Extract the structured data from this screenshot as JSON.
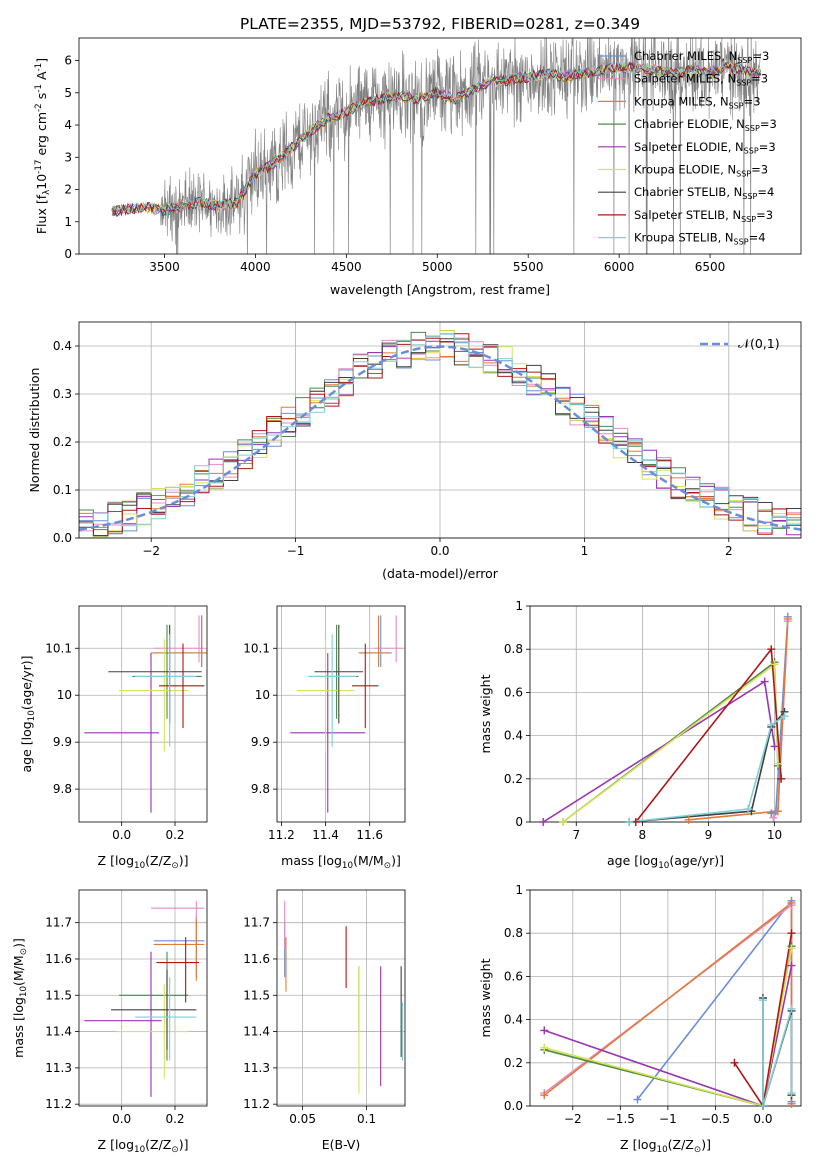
{
  "figure": {
    "title": "PLATE=2355, MJD=53792, FIBERID=0281, z=0.349"
  },
  "colors": {
    "chabrier_miles": "#6a8fd6",
    "salpeter_miles": "#e58cc4",
    "kroupa_miles": "#e07b39",
    "chabrier_elodie": "#4b8a4b",
    "salpeter_elodie": "#9a35b0",
    "kroupa_elodie": "#d6e35a",
    "chabrier_stelib": "#404040",
    "salpeter_stelib": "#b01515",
    "kroupa_stelib": "#7fd0d8",
    "data": "#808080",
    "normal": "#6a8fd6"
  },
  "chart_data": [
    {
      "id": "spectrum",
      "type": "line",
      "xlabel": "wavelength [Angstrom, rest frame]",
      "ylabel": "Flux [f$_\\lambda$10$^{-17}$ erg cm$^{-2}$ s$^{-1}$ A$^{-1}$]",
      "xlim": [
        3030,
        7000
      ],
      "ylim": [
        0,
        6.7
      ],
      "xticks": [
        3500,
        4000,
        4500,
        5000,
        5500,
        6000,
        6500
      ],
      "yticks": [
        0,
        1,
        2,
        3,
        4,
        5,
        6
      ],
      "grid": false,
      "legend_position": "top-right",
      "continuum_x": [
        3200,
        3300,
        3400,
        3500,
        3600,
        3700,
        3800,
        3900,
        4000,
        4100,
        4200,
        4300,
        4400,
        4500,
        4600,
        4700,
        4800,
        4900,
        5000,
        5100,
        5200,
        5300,
        5400,
        5500,
        5600,
        5700,
        5800,
        5900,
        6000,
        6100,
        6200,
        6300,
        6400,
        6500,
        6600,
        6700,
        6800
      ],
      "continuum_y": [
        1.3,
        1.4,
        1.45,
        1.35,
        1.5,
        1.6,
        1.5,
        1.6,
        2.5,
        2.8,
        3.3,
        3.8,
        4.2,
        4.4,
        4.7,
        4.8,
        4.9,
        4.8,
        5.0,
        4.8,
        5.1,
        5.4,
        5.4,
        5.5,
        5.6,
        5.5,
        5.6,
        5.7,
        5.8,
        5.8,
        5.7,
        5.6,
        5.7,
        5.6,
        5.8,
        5.7,
        5.6
      ],
      "series": [
        {
          "name": "Chabrier MILES, N$_{SSP}$=3",
          "color_key": "chabrier_miles"
        },
        {
          "name": "Salpeter MILES, N$_{SSP}$=3",
          "color_key": "salpeter_miles"
        },
        {
          "name": "Kroupa MILES, N$_{SSP}$=3",
          "color_key": "kroupa_miles"
        },
        {
          "name": "Chabrier ELODIE, N$_{SSP}$=3",
          "color_key": "chabrier_elodie"
        },
        {
          "name": "Salpeter ELODIE, N$_{SSP}$=3",
          "color_key": "salpeter_elodie"
        },
        {
          "name": "Kroupa ELODIE, N$_{SSP}$=3",
          "color_key": "kroupa_elodie"
        },
        {
          "name": "Chabrier STELIB, N$_{SSP}$=4",
          "color_key": "chabrier_stelib"
        },
        {
          "name": "Salpeter STELIB, N$_{SSP}$=3",
          "color_key": "salpeter_stelib"
        },
        {
          "name": "Kroupa STELIB, N$_{SSP}$=4",
          "color_key": "kroupa_stelib"
        }
      ]
    },
    {
      "id": "residuals",
      "type": "line",
      "xlabel": "(data-model)/error",
      "ylabel": "Normed distribution",
      "xlim": [
        -2.5,
        2.5
      ],
      "ylim": [
        0,
        0.45
      ],
      "xticks": [
        -2,
        -1,
        0,
        1,
        2
      ],
      "yticks": [
        0.0,
        0.1,
        0.2,
        0.3,
        0.4
      ],
      "grid": true,
      "legend_position": "top-right",
      "legend_label": "$\\mathcal{N}(0,1)$",
      "hist_bins": [
        -2.5,
        2.5,
        50
      ]
    },
    {
      "id": "age_vs_Z",
      "type": "scatter",
      "xlabel": "Z [log$_{10}$(Z/Z$_\\odot$)]",
      "ylabel": "age  [log$_{10}$(age/yr)]",
      "xlim": [
        -0.16,
        0.32
      ],
      "ylim": [
        9.73,
        10.19
      ],
      "xticks": [
        0.0,
        0.2
      ],
      "yticks": [
        9.8,
        9.9,
        10.0,
        10.1
      ],
      "grid": true,
      "points": [
        {
          "k": "chabrier_miles",
          "x": 0.3,
          "xe": [
            0.12,
            0.32
          ],
          "y": 10.09,
          "ye": [
            10.06,
            10.17
          ]
        },
        {
          "k": "salpeter_miles",
          "x": 0.29,
          "xe": [
            0.12,
            0.31
          ],
          "y": 10.1,
          "ye": [
            10.07,
            10.17
          ]
        },
        {
          "k": "kroupa_miles",
          "x": 0.3,
          "xe": [
            0.11,
            0.32
          ],
          "y": 10.09,
          "ye": [
            10.06,
            10.17
          ]
        },
        {
          "k": "chabrier_elodie",
          "x": 0.17,
          "xe": [
            0.04,
            0.3
          ],
          "y": 10.04,
          "ye": [
            9.95,
            10.15
          ]
        },
        {
          "k": "salpeter_elodie",
          "x": 0.11,
          "xe": [
            -0.14,
            0.14
          ],
          "y": 9.92,
          "ye": [
            9.75,
            10.09
          ]
        },
        {
          "k": "kroupa_elodie",
          "x": 0.16,
          "xe": [
            -0.01,
            0.25
          ],
          "y": 10.01,
          "ye": [
            9.88,
            10.12
          ]
        },
        {
          "k": "chabrier_stelib",
          "x": 0.18,
          "xe": [
            -0.05,
            0.3
          ],
          "y": 10.05,
          "ye": [
            9.94,
            10.15
          ]
        },
        {
          "k": "salpeter_stelib",
          "x": 0.23,
          "xe": [
            0.14,
            0.31
          ],
          "y": 10.02,
          "ye": [
            9.93,
            10.11
          ]
        },
        {
          "k": "kroupa_stelib",
          "x": 0.18,
          "xe": [
            0.05,
            0.28
          ],
          "y": 10.04,
          "ye": [
            9.89,
            10.13
          ]
        }
      ]
    },
    {
      "id": "age_vs_mass",
      "type": "scatter",
      "xlabel": "mass [log$_{10}$(M/M$_\\odot$)]",
      "ylabel": "",
      "xlim": [
        11.18,
        11.76
      ],
      "ylim": [
        9.73,
        10.19
      ],
      "xticks": [
        11.2,
        11.4,
        11.6
      ],
      "yticks": [
        9.8,
        9.9,
        10.0,
        10.1
      ],
      "grid": true,
      "points": [
        {
          "k": "chabrier_miles",
          "x": 11.65,
          "xe": [
            11.55,
            11.7
          ],
          "y": 10.09,
          "ye": [
            10.06,
            10.17
          ]
        },
        {
          "k": "salpeter_miles",
          "x": 11.72,
          "xe": [
            11.62,
            11.75
          ],
          "y": 10.1,
          "ye": [
            10.07,
            10.17
          ]
        },
        {
          "k": "kroupa_miles",
          "x": 11.64,
          "xe": [
            11.55,
            11.69
          ],
          "y": 10.09,
          "ye": [
            10.06,
            10.17
          ]
        },
        {
          "k": "chabrier_elodie",
          "x": 11.45,
          "xe": [
            11.33,
            11.55
          ],
          "y": 10.04,
          "ye": [
            9.95,
            10.15
          ]
        },
        {
          "k": "salpeter_elodie",
          "x": 11.41,
          "xe": [
            11.24,
            11.58
          ],
          "y": 9.92,
          "ye": [
            9.75,
            10.09
          ]
        },
        {
          "k": "kroupa_elodie",
          "x": 11.4,
          "xe": [
            11.27,
            11.53
          ],
          "y": 10.01,
          "ye": [
            9.88,
            10.12
          ]
        },
        {
          "k": "chabrier_stelib",
          "x": 11.46,
          "xe": [
            11.35,
            11.57
          ],
          "y": 10.05,
          "ye": [
            9.94,
            10.15
          ]
        },
        {
          "k": "salpeter_stelib",
          "x": 11.58,
          "xe": [
            11.52,
            11.64
          ],
          "y": 10.02,
          "ye": [
            9.93,
            10.11
          ]
        },
        {
          "k": "kroupa_stelib",
          "x": 11.43,
          "xe": [
            11.32,
            11.54
          ],
          "y": 10.04,
          "ye": [
            9.89,
            10.13
          ]
        }
      ]
    },
    {
      "id": "weight_vs_age",
      "type": "line",
      "xlabel": "age  [log$_{10}$(age/yr)]",
      "ylabel": "mass weight",
      "xlim": [
        6.3,
        10.4
      ],
      "ylim": [
        0,
        1.0
      ],
      "xticks": [
        7,
        8,
        9,
        10
      ],
      "yticks": [
        0.0,
        0.2,
        0.4,
        0.6,
        0.8,
        1.0
      ],
      "grid": true,
      "series": [
        {
          "k": "chabrier_miles",
          "x": [
            9.95,
            10.02,
            10.2
          ],
          "y": [
            0.04,
            0.05,
            0.95
          ]
        },
        {
          "k": "salpeter_miles",
          "x": [
            9.98,
            10.05,
            10.2
          ],
          "y": [
            0.02,
            0.05,
            0.93
          ]
        },
        {
          "k": "kroupa_miles",
          "x": [
            8.7,
            10.05,
            10.2
          ],
          "y": [
            0.01,
            0.05,
            0.94
          ]
        },
        {
          "k": "chabrier_elodie",
          "x": [
            6.8,
            10.0,
            10.05
          ],
          "y": [
            0.0,
            0.74,
            0.26
          ]
        },
        {
          "k": "salpeter_elodie",
          "x": [
            6.5,
            9.85,
            10.0
          ],
          "y": [
            0.0,
            0.65,
            0.35
          ]
        },
        {
          "k": "kroupa_elodie",
          "x": [
            6.8,
            10.0,
            10.05
          ],
          "y": [
            0.0,
            0.73,
            0.27
          ]
        },
        {
          "k": "chabrier_stelib",
          "x": [
            7.8,
            9.65,
            9.95,
            10.15
          ],
          "y": [
            0.0,
            0.05,
            0.44,
            0.51
          ]
        },
        {
          "k": "salpeter_stelib",
          "x": [
            7.9,
            9.95,
            10.1
          ],
          "y": [
            0.0,
            0.8,
            0.2
          ]
        },
        {
          "k": "kroupa_stelib",
          "x": [
            7.8,
            9.6,
            9.95,
            10.15
          ],
          "y": [
            0.0,
            0.06,
            0.45,
            0.49
          ]
        }
      ]
    },
    {
      "id": "mass_vs_Z",
      "type": "scatter",
      "xlabel": "Z [log$_{10}$(Z/Z$_\\odot$)]",
      "ylabel": "mass [log$_{10}$(M/M$_\\odot$)]",
      "xlim": [
        -0.16,
        0.32
      ],
      "ylim": [
        11.195,
        11.79
      ],
      "xticks": [
        0.0,
        0.2
      ],
      "yticks": [
        11.2,
        11.3,
        11.4,
        11.5,
        11.6,
        11.7
      ],
      "grid": true,
      "points": [
        {
          "k": "chabrier_miles",
          "x": 0.28,
          "xe": [
            0.12,
            0.31
          ],
          "y": 11.65,
          "ye": [
            11.55,
            11.72
          ]
        },
        {
          "k": "salpeter_miles",
          "x": 0.28,
          "xe": [
            0.11,
            0.31
          ],
          "y": 11.74,
          "ye": [
            11.63,
            11.76
          ]
        },
        {
          "k": "kroupa_miles",
          "x": 0.28,
          "xe": [
            0.12,
            0.31
          ],
          "y": 11.64,
          "ye": [
            11.54,
            11.71
          ]
        },
        {
          "k": "chabrier_elodie",
          "x": 0.17,
          "xe": [
            -0.01,
            0.25
          ],
          "y": 11.5,
          "ye": [
            11.32,
            11.62
          ]
        },
        {
          "k": "salpeter_elodie",
          "x": 0.11,
          "xe": [
            -0.14,
            0.15
          ],
          "y": 11.43,
          "ye": [
            11.22,
            11.62
          ]
        },
        {
          "k": "kroupa_elodie",
          "x": 0.16,
          "xe": [
            -0.02,
            0.25
          ],
          "y": 11.4,
          "ye": [
            11.27,
            11.53
          ]
        },
        {
          "k": "chabrier_stelib",
          "x": 0.17,
          "xe": [
            -0.04,
            0.28
          ],
          "y": 11.46,
          "ye": [
            11.35,
            11.57
          ]
        },
        {
          "k": "salpeter_stelib",
          "x": 0.24,
          "xe": [
            0.13,
            0.29
          ],
          "y": 11.59,
          "ye": [
            11.48,
            11.66
          ]
        },
        {
          "k": "kroupa_stelib",
          "x": 0.18,
          "xe": [
            0.05,
            0.28
          ],
          "y": 11.44,
          "ye": [
            11.32,
            11.55
          ]
        }
      ]
    },
    {
      "id": "mass_vs_ebv",
      "type": "scatter",
      "xlabel": "E(B-V)",
      "ylabel": "",
      "xlim": [
        0.03,
        0.13
      ],
      "ylim": [
        11.195,
        11.79
      ],
      "xticks": [
        0.05,
        0.1
      ],
      "yticks": [
        11.2,
        11.3,
        11.4,
        11.5,
        11.6,
        11.7
      ],
      "grid": true,
      "points": [
        {
          "k": "chabrier_miles",
          "x": 0.036,
          "ye": [
            11.55,
            11.7
          ]
        },
        {
          "k": "salpeter_miles",
          "x": 0.036,
          "ye": [
            11.63,
            11.76
          ]
        },
        {
          "k": "kroupa_miles",
          "x": 0.037,
          "ye": [
            11.51,
            11.66
          ]
        },
        {
          "k": "chabrier_elodie",
          "x": 0.094,
          "ye": [
            11.4,
            11.58
          ]
        },
        {
          "k": "salpeter_elodie",
          "x": 0.111,
          "ye": [
            11.25,
            11.58
          ]
        },
        {
          "k": "kroupa_elodie",
          "x": 0.094,
          "ye": [
            11.23,
            11.58
          ]
        },
        {
          "k": "chabrier_stelib",
          "x": 0.127,
          "ye": [
            11.33,
            11.58
          ]
        },
        {
          "k": "salpeter_stelib",
          "x": 0.084,
          "ye": [
            11.52,
            11.69
          ]
        },
        {
          "k": "kroupa_stelib",
          "x": 0.128,
          "ye": [
            11.32,
            11.48
          ]
        }
      ]
    },
    {
      "id": "weight_vs_Z",
      "type": "line",
      "xlabel": "Z [log$_{10}$(Z/Z$_\\odot$)]",
      "ylabel": "mass weight",
      "xlim": [
        -2.45,
        0.4
      ],
      "ylim": [
        0,
        1.0
      ],
      "xticks": [
        -2.0,
        -1.5,
        -1.0,
        -0.5,
        0.0
      ],
      "yticks": [
        0.0,
        0.2,
        0.4,
        0.6,
        0.8,
        1.0
      ],
      "grid": true,
      "series": [
        {
          "k": "chabrier_miles",
          "x": [
            -1.32,
            0.3,
            0.3
          ],
          "y": [
            0.03,
            0.95,
            0.02
          ]
        },
        {
          "k": "salpeter_miles",
          "x": [
            -2.3,
            0.3,
            0.3
          ],
          "y": [
            0.06,
            0.93,
            0.01
          ]
        },
        {
          "k": "kroupa_miles",
          "x": [
            -2.3,
            0.3,
            0.3
          ],
          "y": [
            0.05,
            0.94,
            0.01
          ]
        },
        {
          "k": "chabrier_elodie",
          "x": [
            -2.3,
            0.0,
            0.3
          ],
          "y": [
            0.26,
            0.0,
            0.74
          ]
        },
        {
          "k": "salpeter_elodie",
          "x": [
            -2.3,
            0.0,
            0.3
          ],
          "y": [
            0.35,
            0.0,
            0.65
          ]
        },
        {
          "k": "kroupa_elodie",
          "x": [
            -2.3,
            0.0,
            0.3
          ],
          "y": [
            0.27,
            0.0,
            0.73
          ]
        },
        {
          "k": "chabrier_stelib",
          "x": [
            0.0,
            0.0,
            0.3,
            0.3
          ],
          "y": [
            0.5,
            0.0,
            0.44,
            0.05
          ]
        },
        {
          "k": "salpeter_stelib",
          "x": [
            -0.3,
            0.0,
            0.3
          ],
          "y": [
            0.2,
            0.0,
            0.8
          ]
        },
        {
          "k": "kroupa_stelib",
          "x": [
            0.0,
            0.0,
            0.3,
            0.3
          ],
          "y": [
            0.49,
            0.0,
            0.45,
            0.06
          ]
        }
      ]
    }
  ]
}
